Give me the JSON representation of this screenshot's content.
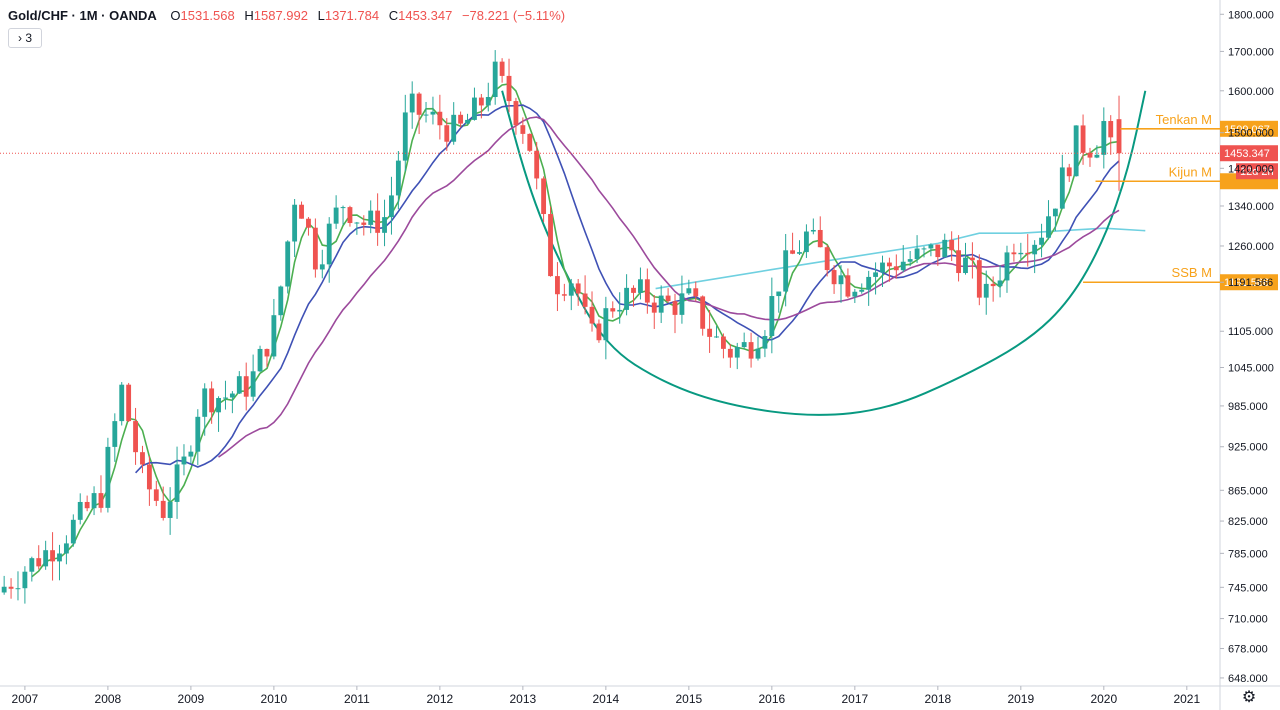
{
  "header": {
    "symbol": "Gold/CHF · 1M · OANDA",
    "open_label": "O",
    "open": "1531.568",
    "high_label": "H",
    "high": "1587.992",
    "low_label": "L",
    "low": "1371.784",
    "close_label": "C",
    "close": "1453.347",
    "change": "−78.221 (−5.11%)",
    "collapse_label": "› 3"
  },
  "colors": {
    "up": "#26a69a",
    "down": "#ef5350",
    "tenkan": "#4caf50",
    "kijun": "#3f51b5",
    "ma_purple": "#9c4a9c",
    "ma_cyan": "#6fd0e0",
    "cup": "#089981",
    "level": "#f7a21b",
    "price_line": "#ef5350"
  },
  "chart_data": {
    "type": "candlestick",
    "interval": "1M",
    "scale": "log",
    "ylim": [
      640,
      1840
    ],
    "y_ticks": [
      "1800.000",
      "1700.000",
      "1600.000",
      "1500.000",
      "1420.000",
      "1340.000",
      "1260.000",
      "1191.566",
      "1105.000",
      "1045.000",
      "985.000",
      "925.000",
      "865.000",
      "825.000",
      "785.000",
      "745.000",
      "710.000",
      "678.000",
      "648.000"
    ],
    "x_ticks": [
      "2007",
      "2008",
      "2009",
      "2010",
      "2011",
      "2012",
      "2013",
      "2014",
      "2015",
      "2016",
      "2017",
      "2018",
      "2019",
      "2020",
      "2021"
    ],
    "x_range": [
      "2006-09",
      "2021-05"
    ],
    "price_path": [
      [
        2006.7,
        735
      ],
      [
        2007.0,
        760
      ],
      [
        2007.5,
        800
      ],
      [
        2008.0,
        860
      ],
      [
        2008.25,
        1010
      ],
      [
        2008.5,
        880
      ],
      [
        2008.75,
        840
      ],
      [
        2009.0,
        900
      ],
      [
        2009.2,
        1000
      ],
      [
        2009.5,
        1000
      ],
      [
        2009.8,
        1020
      ],
      [
        2010.1,
        1120
      ],
      [
        2010.35,
        1380
      ],
      [
        2010.6,
        1230
      ],
      [
        2010.9,
        1350
      ],
      [
        2011.2,
        1300
      ],
      [
        2011.45,
        1320
      ],
      [
        2011.7,
        1560
      ],
      [
        2012.0,
        1530
      ],
      [
        2012.3,
        1500
      ],
      [
        2012.55,
        1560
      ],
      [
        2012.75,
        1640
      ],
      [
        2012.95,
        1570
      ],
      [
        2013.15,
        1490
      ],
      [
        2013.3,
        1330
      ],
      [
        2013.45,
        1190
      ],
      [
        2013.7,
        1200
      ],
      [
        2013.9,
        1090
      ],
      [
        2014.2,
        1160
      ],
      [
        2014.5,
        1170
      ],
      [
        2014.8,
        1150
      ],
      [
        2015.1,
        1160
      ],
      [
        2015.35,
        1100
      ],
      [
        2015.55,
        1070
      ],
      [
        2015.8,
        1080
      ],
      [
        2016.0,
        1120
      ],
      [
        2016.2,
        1210
      ],
      [
        2016.5,
        1280
      ],
      [
        2016.8,
        1220
      ],
      [
        2017.0,
        1190
      ],
      [
        2017.3,
        1210
      ],
      [
        2017.6,
        1230
      ],
      [
        2017.9,
        1240
      ],
      [
        2018.2,
        1260
      ],
      [
        2018.45,
        1220
      ],
      [
        2018.65,
        1160
      ],
      [
        2018.85,
        1220
      ],
      [
        2019.0,
        1270
      ],
      [
        2019.3,
        1280
      ],
      [
        2019.55,
        1380
      ],
      [
        2019.75,
        1480
      ],
      [
        2019.9,
        1470
      ],
      [
        2020.0,
        1480
      ],
      [
        2020.1,
        1531
      ],
      [
        2020.17,
        1453
      ]
    ],
    "last_candle": {
      "open": 1531.568,
      "high": 1587.992,
      "low": 1371.784,
      "close": 1453.347
    },
    "series": [
      {
        "name": "Tenkan M",
        "color": "#4caf50",
        "start": 2007.0,
        "lag": 0.2
      },
      {
        "name": "Kijun M",
        "color": "#3f51b5",
        "start": 2008.25,
        "lag": 0.55
      },
      {
        "name": "SSB M",
        "color": "#9c4a9c",
        "start": 2009.25,
        "lag": 1.1
      }
    ],
    "cyan_series": [
      [
        2014.6,
        1180
      ],
      [
        2016.0,
        1215
      ],
      [
        2017.0,
        1240
      ],
      [
        2018.0,
        1265
      ],
      [
        2018.5,
        1285
      ],
      [
        2019.0,
        1285
      ],
      [
        2020.0,
        1295
      ],
      [
        2020.5,
        1290
      ]
    ],
    "cup_curve": [
      [
        2012.75,
        1600
      ],
      [
        2013.1,
        1360
      ],
      [
        2013.5,
        1210
      ],
      [
        2014.0,
        1080
      ],
      [
        2014.7,
        1020
      ],
      [
        2015.5,
        985
      ],
      [
        2016.5,
        968
      ],
      [
        2017.4,
        980
      ],
      [
        2018.3,
        1030
      ],
      [
        2019.1,
        1090
      ],
      [
        2019.6,
        1160
      ],
      [
        2020.0,
        1270
      ],
      [
        2020.3,
        1420
      ],
      [
        2020.5,
        1600
      ]
    ],
    "levels": [
      {
        "name": "Tenkan M",
        "value": 1509.067,
        "label": "1509.067",
        "from": 2020.2
      },
      {
        "name": "Kijun M",
        "value": 1392.0,
        "label": "",
        "from": 2019.9
      },
      {
        "name": "SSB M",
        "value": 1191.566,
        "label": "1191.566",
        "from": 2019.75
      }
    ],
    "price_line": {
      "value": 1453.347,
      "label": "1453.347",
      "countdown": "12d 2h"
    }
  }
}
